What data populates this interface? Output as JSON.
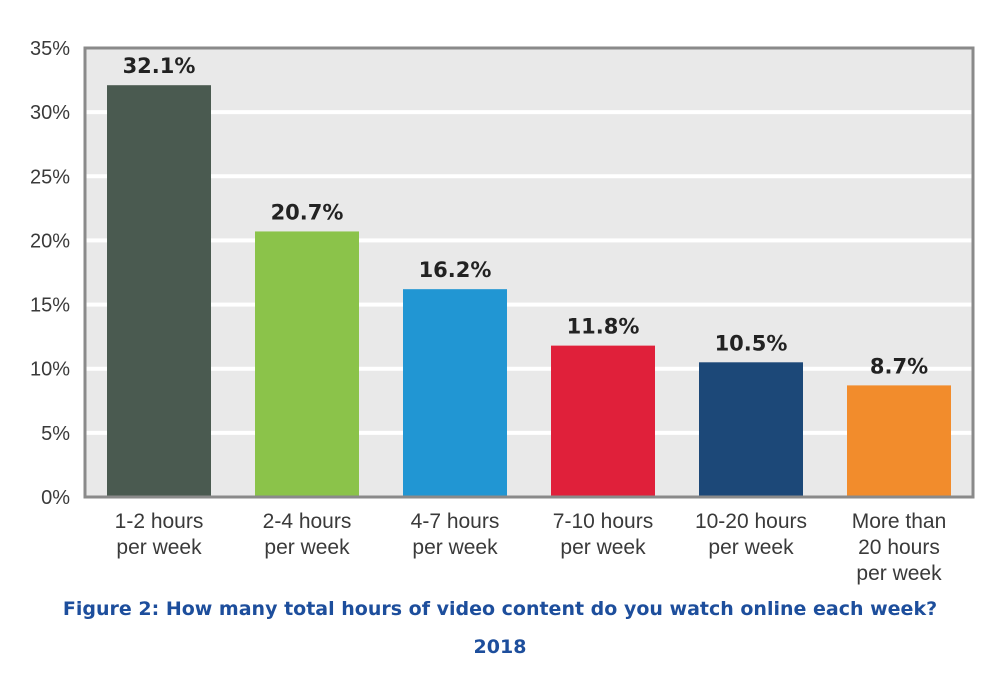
{
  "chart_data": {
    "type": "bar",
    "categories": [
      [
        "1-2 hours",
        "per week"
      ],
      [
        "2-4 hours",
        "per week"
      ],
      [
        "4-7 hours",
        "per week"
      ],
      [
        "7-10 hours",
        "per week"
      ],
      [
        "10-20 hours",
        "per week"
      ],
      [
        "More than",
        "20 hours",
        "per week"
      ]
    ],
    "values": [
      32.1,
      20.7,
      16.2,
      11.8,
      10.5,
      8.7
    ],
    "data_labels": [
      "32.1%",
      "20.7%",
      "16.2%",
      "11.8%",
      "10.5%",
      "8.7%"
    ],
    "colors": [
      "#4a5a50",
      "#8bc34a",
      "#2196d3",
      "#e0203a",
      "#1c4878",
      "#f28c2c"
    ],
    "ylim": [
      0,
      35
    ],
    "yticks": [
      0,
      5,
      10,
      15,
      20,
      25,
      30,
      35
    ],
    "ytick_labels": [
      "0%",
      "5%",
      "10%",
      "15%",
      "20%",
      "25%",
      "30%",
      "35%"
    ],
    "grid": true,
    "plot_background": "#e9e9e9",
    "title": "Figure 2: How many total hours of video content do you watch online each week?",
    "subtitle": "2018"
  }
}
